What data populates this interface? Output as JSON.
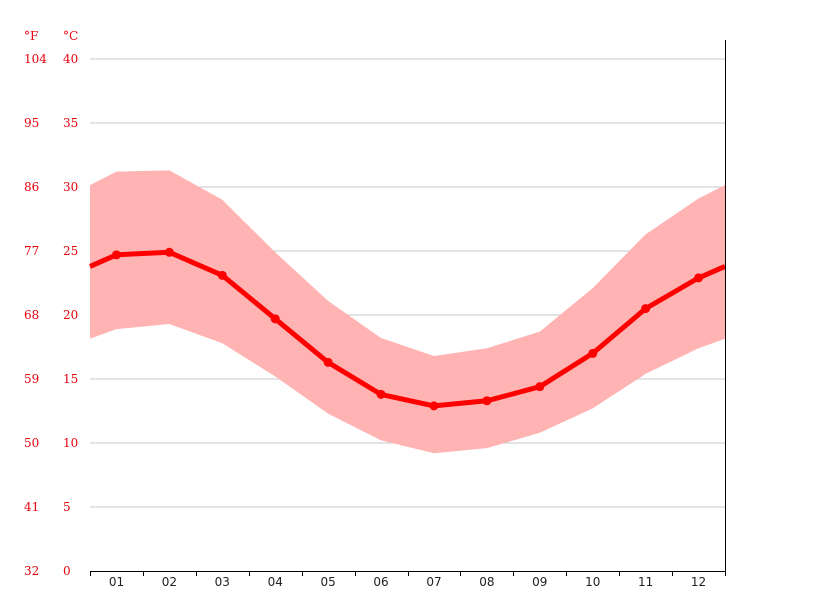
{
  "chart_data": {
    "type": "line",
    "x_categories": [
      "01",
      "02",
      "03",
      "04",
      "05",
      "06",
      "07",
      "08",
      "09",
      "10",
      "11",
      "12"
    ],
    "unit_labels": {
      "fahrenheit": "°F",
      "celsius": "°C"
    },
    "y_ticks_celsius": [
      "0",
      "5",
      "10",
      "15",
      "20",
      "25",
      "30",
      "35",
      "40"
    ],
    "y_ticks_fahrenheit": [
      "32",
      "41",
      "50",
      "59",
      "68",
      "77",
      "86",
      "95",
      "104"
    ],
    "ylim": [
      0,
      40
    ],
    "grid": true,
    "series": [
      {
        "values": [
          24.7,
          24.9,
          23.1,
          19.7,
          16.3,
          13.8,
          12.9,
          13.3,
          14.4,
          17.0,
          20.5,
          22.9
        ]
      }
    ],
    "band": {
      "upper": [
        31.2,
        31.3,
        29.0,
        24.9,
        21.1,
        18.2,
        16.8,
        17.4,
        18.7,
        22.1,
        26.3,
        29.1
      ],
      "lower": [
        18.9,
        19.3,
        17.8,
        15.2,
        12.3,
        10.2,
        9.2,
        9.6,
        10.8,
        12.7,
        15.4,
        17.4
      ]
    },
    "colors": {
      "line": "#ff0000",
      "band": "#ffb3b3",
      "labels": "#e8000b",
      "grid": "#c8c8c8"
    }
  }
}
